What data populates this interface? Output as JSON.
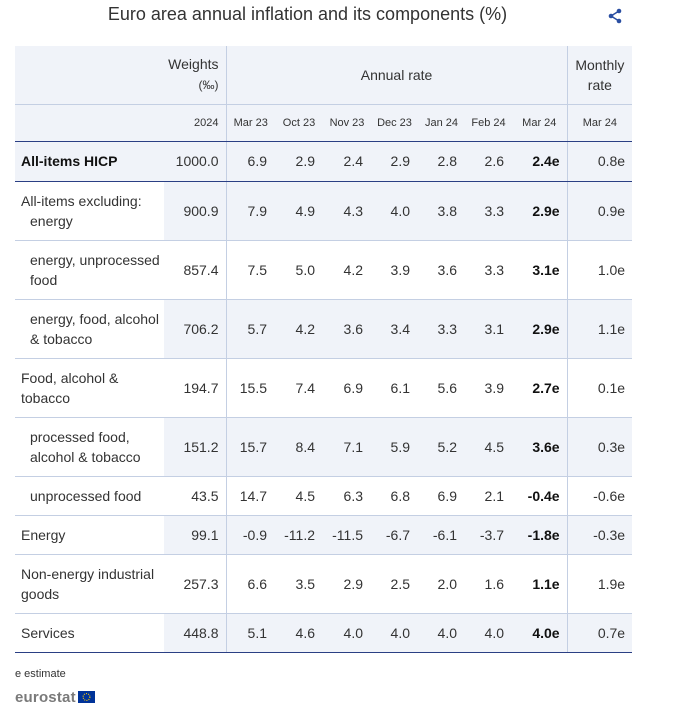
{
  "title": "Euro area annual inflation and its components (%)",
  "header": {
    "weights_line1": "Weights",
    "weights_line2": "(‰)",
    "annual_rate": "Annual rate",
    "monthly_line1": "Monthly",
    "monthly_line2": "rate",
    "columns": [
      "2024",
      "Mar 23",
      "Oct 23",
      "Nov 23",
      "Dec 23",
      "Jan 24",
      "Feb 24",
      "Mar 24",
      "Mar 24"
    ]
  },
  "rows": [
    {
      "line1": "All-items HICP",
      "line2": "",
      "weight": "1000.0",
      "values": [
        "6.9",
        "2.9",
        "2.4",
        "2.9",
        "2.8",
        "2.6"
      ],
      "current": "2.4e",
      "monthly": "0.8e"
    },
    {
      "line1": "All-items excluding:",
      "line2": "energy",
      "weight": "900.9",
      "values": [
        "7.9",
        "4.9",
        "4.3",
        "4.0",
        "3.8",
        "3.3"
      ],
      "current": "2.9e",
      "monthly": "0.9e"
    },
    {
      "line1": "energy, unprocessed",
      "line2": "food",
      "weight": "857.4",
      "values": [
        "7.5",
        "5.0",
        "4.2",
        "3.9",
        "3.6",
        "3.3"
      ],
      "current": "3.1e",
      "monthly": "1.0e"
    },
    {
      "line1": "energy, food, alcohol",
      "line2": "& tobacco",
      "weight": "706.2",
      "values": [
        "5.7",
        "4.2",
        "3.6",
        "3.4",
        "3.3",
        "3.1"
      ],
      "current": "2.9e",
      "monthly": "1.1e"
    },
    {
      "line1": "Food, alcohol &",
      "line2": "tobacco",
      "weight": "194.7",
      "values": [
        "15.5",
        "7.4",
        "6.9",
        "6.1",
        "5.6",
        "3.9"
      ],
      "current": "2.7e",
      "monthly": "0.1e"
    },
    {
      "line1": "processed food,",
      "line2": "alcohol & tobacco",
      "weight": "151.2",
      "values": [
        "15.7",
        "8.4",
        "7.1",
        "5.9",
        "5.2",
        "4.5"
      ],
      "current": "3.6e",
      "monthly": "0.3e"
    },
    {
      "line1": "unprocessed food",
      "line2": "",
      "weight": "43.5",
      "values": [
        "14.7",
        "4.5",
        "6.3",
        "6.8",
        "6.9",
        "2.1"
      ],
      "current": "-0.4e",
      "monthly": "-0.6e"
    },
    {
      "line1": "Energy",
      "line2": "",
      "weight": "99.1",
      "values": [
        "-0.9",
        "-11.2",
        "-11.5",
        "-6.7",
        "-6.1",
        "-3.7"
      ],
      "current": "-1.8e",
      "monthly": "-0.3e"
    },
    {
      "line1": "Non-energy industrial",
      "line2": "goods",
      "weight": "257.3",
      "values": [
        "6.6",
        "3.5",
        "2.9",
        "2.5",
        "2.0",
        "1.6"
      ],
      "current": "1.1e",
      "monthly": "1.9e"
    },
    {
      "line1": "Services",
      "line2": "",
      "weight": "448.8",
      "values": [
        "5.1",
        "4.6",
        "4.0",
        "4.0",
        "4.0",
        "4.0"
      ],
      "current": "4.0e",
      "monthly": "0.7e"
    }
  ],
  "note": "e estimate",
  "logo_text": "eurostat",
  "icons": {
    "share": "share-icon",
    "flag": "eu-flag-icon"
  },
  "colors": {
    "header_bg": "#f0f3f9",
    "accent_line": "#2a3f84",
    "share_icon": "#2a4ea2",
    "flag_blue": "#003399",
    "flag_star": "#ffcc00"
  }
}
